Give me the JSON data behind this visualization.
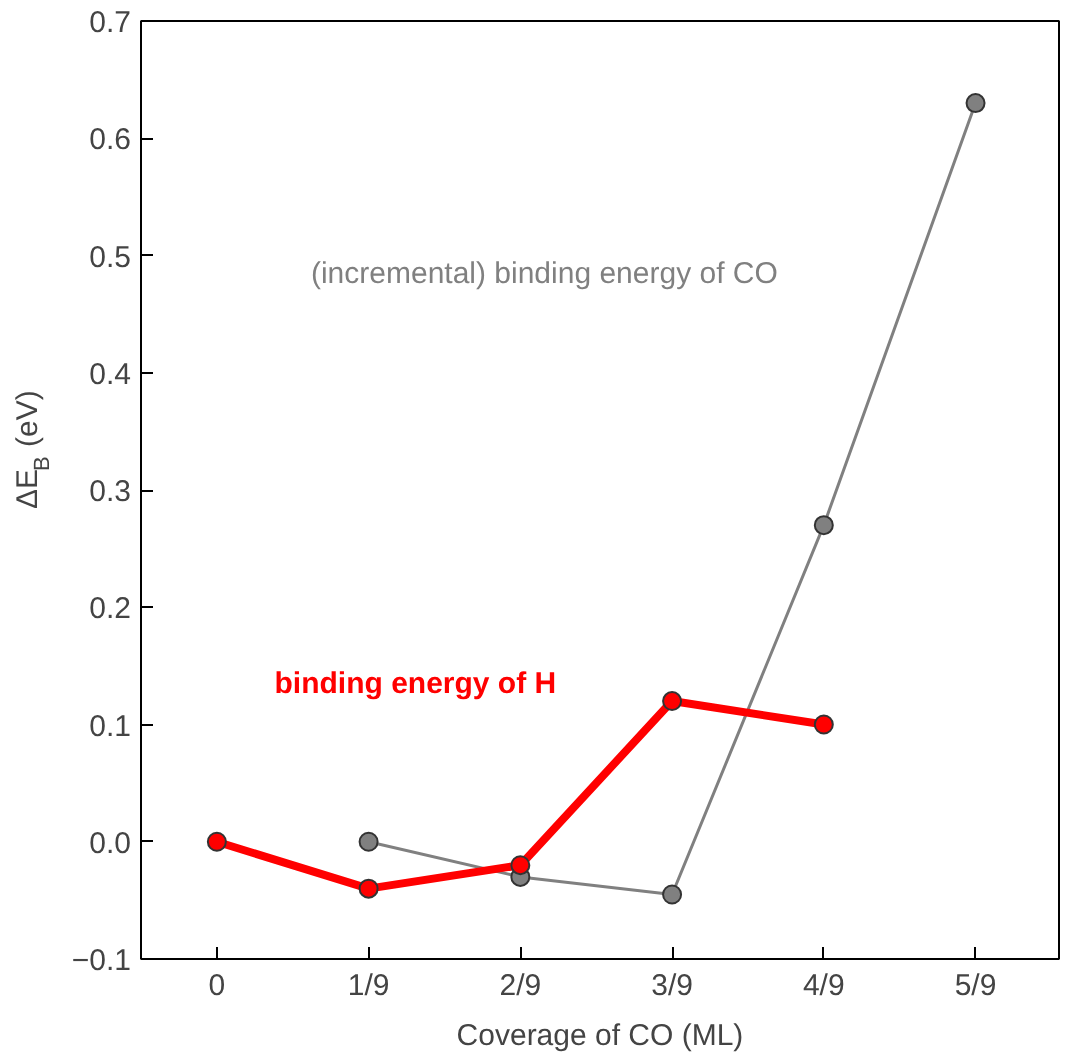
{
  "chart_data": {
    "type": "line",
    "xlabel": "Coverage of CO (ML)",
    "ylabel": "ΔE$_{B}$ (eV)",
    "categories": [
      "0",
      "1/9",
      "2/9",
      "3/9",
      "4/9",
      "5/9"
    ],
    "ylim": [
      -0.1,
      0.7
    ],
    "yticks": [
      {
        "value": -0.1,
        "label": "−0.1"
      },
      {
        "value": 0.0,
        "label": "0.0"
      },
      {
        "value": 0.1,
        "label": "0.1"
      },
      {
        "value": 0.2,
        "label": "0.2"
      },
      {
        "value": 0.3,
        "label": "0.3"
      },
      {
        "value": 0.4,
        "label": "0.4"
      },
      {
        "value": 0.5,
        "label": "0.5"
      },
      {
        "value": 0.6,
        "label": "0.6"
      },
      {
        "value": 0.7,
        "label": "0.7"
      }
    ],
    "series": [
      {
        "name": "(incremental) binding energy of CO",
        "color": "#808080",
        "values": [
          null,
          0.0,
          -0.03,
          -0.045,
          0.27,
          0.63
        ]
      },
      {
        "name": "binding energy of H",
        "color": "#ff0000",
        "values": [
          0.0,
          -0.04,
          -0.02,
          0.12,
          0.1,
          null
        ]
      }
    ],
    "marker": "circle",
    "grid": false
  }
}
